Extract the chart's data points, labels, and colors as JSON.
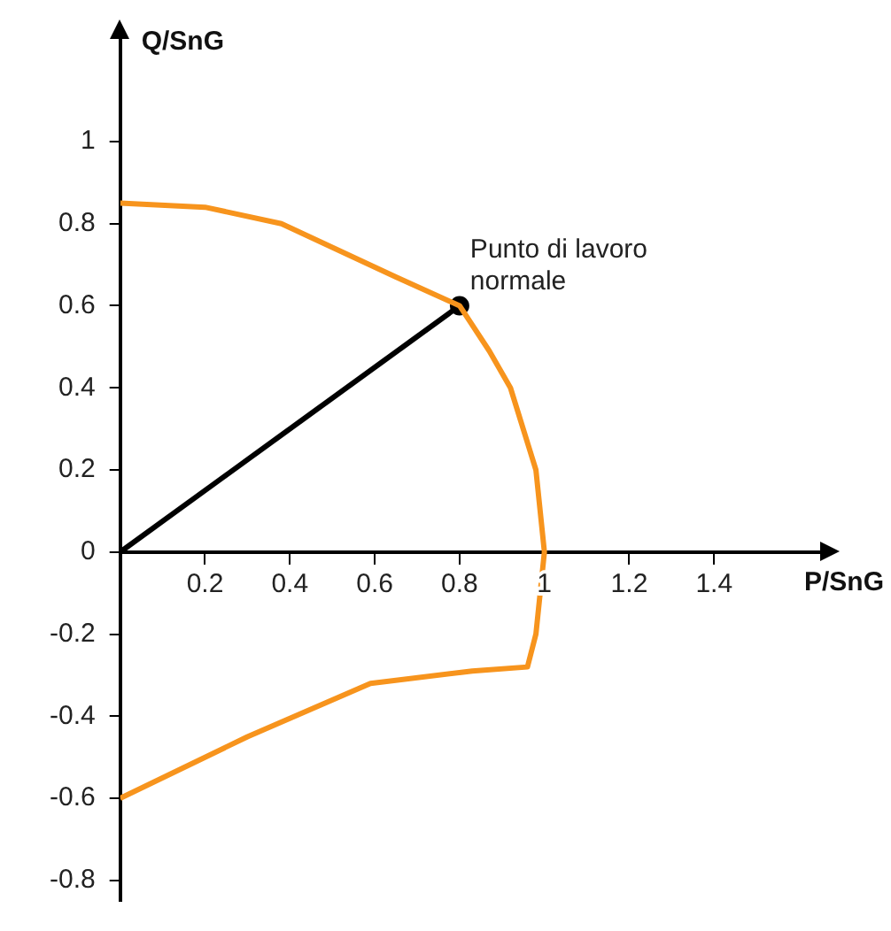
{
  "chart_data": {
    "type": "line",
    "xlabel": "P/SnG",
    "ylabel": "Q/SnG",
    "xlim": [
      0,
      1.65
    ],
    "ylim": [
      -0.85,
      1.25
    ],
    "xticks": [
      0.2,
      0.4,
      0.6,
      0.8,
      1,
      1.2,
      1.4
    ],
    "yticks": [
      -0.8,
      -0.6,
      -0.4,
      -0.2,
      0,
      0.2,
      0.4,
      0.6,
      0.8,
      1
    ],
    "grid": false,
    "legend": false,
    "annotations": [
      {
        "text": "Punto di lavoro normale",
        "x": 0.8,
        "y": 0.6
      }
    ],
    "series": [
      {
        "color": "#f7941d",
        "marker": "none",
        "x": [
          0,
          0.2,
          0.38,
          0.65,
          0.8,
          0.87,
          0.92,
          0.98,
          1,
          0.98,
          0.96,
          0.83,
          0.59,
          0.3,
          0
        ],
        "values": [
          0.85,
          0.84,
          0.8,
          0.67,
          0.6,
          0.49,
          0.4,
          0.2,
          0,
          -0.2,
          -0.28,
          -0.29,
          -0.32,
          -0.45,
          -0.6
        ]
      },
      {
        "color": "#000000",
        "marker": "none",
        "x": [
          0,
          0.8
        ],
        "values": [
          0,
          0.6
        ]
      },
      {
        "type": "scatter",
        "color": "#000000",
        "marker": "circle",
        "x": [
          0.8
        ],
        "values": [
          0.6
        ]
      }
    ]
  }
}
